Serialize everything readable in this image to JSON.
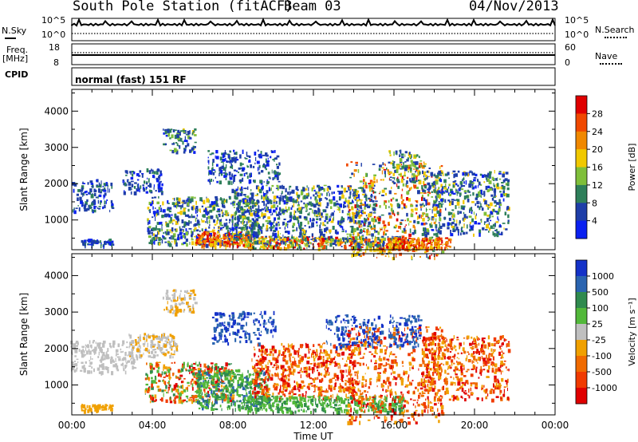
{
  "header": {
    "station": "South Pole Station (fitACF)",
    "beam": "Beam 03",
    "date": "04/Nov/2013",
    "mode_text": "normal (fast) 151 RF"
  },
  "strip_labels": {
    "nsky": "N.Sky",
    "nsearch": "N.Search",
    "freq_line1": "Freq.",
    "freq_line2": "[MHz]",
    "nave": "Nave",
    "cpid": "CPID",
    "nsky_ticks": [
      "10^5",
      "10^0"
    ],
    "nsearch_ticks": [
      "10^5",
      "10^0"
    ],
    "freq_ticks": [
      "18",
      "8"
    ],
    "nave_ticks": [
      "60",
      "0"
    ]
  },
  "chart_data": [
    {
      "type": "heatmap",
      "title": "Power",
      "xlabel": "Time UT",
      "ylabel": "Slant Range [km]",
      "x_ticks": [
        "00:00",
        "04:00",
        "08:00",
        "12:00",
        "16:00",
        "20:00",
        "00:00"
      ],
      "y_ticks": [
        1000,
        2000,
        3000,
        4000
      ],
      "colorbar_label": "Power [dB]",
      "colorbar_ticks": [
        "4",
        "8",
        "12",
        "16",
        "20",
        "24",
        "28"
      ],
      "colors": [
        "#0a20f0",
        "#1e3ea8",
        "#2e7f5a",
        "#7fbf3a",
        "#f0c800",
        "#f08800",
        "#f04800",
        "#e00000"
      ],
      "ylim": [
        180,
        4600
      ],
      "xlim_hours": [
        0,
        24
      ]
    },
    {
      "type": "heatmap",
      "title": "Velocity",
      "xlabel": "Time UT",
      "ylabel": "Slant Range [km]",
      "x_ticks": [
        "00:00",
        "04:00",
        "08:00",
        "12:00",
        "16:00",
        "20:00",
        "00:00"
      ],
      "y_ticks": [
        1000,
        2000,
        3000,
        4000
      ],
      "colorbar_label": "Velocity [m s⁻¹]",
      "colorbar_ticks": [
        "1000",
        "500",
        "100",
        "25",
        "-25",
        "-100",
        "-500",
        "-1000"
      ],
      "colors": [
        "#1432c8",
        "#2a64b0",
        "#2f8a4e",
        "#52b83a",
        "#bfbfbf",
        "#f0a000",
        "#f06a00",
        "#f03a00",
        "#e00000"
      ],
      "ylim": [
        180,
        4600
      ],
      "xlim_hours": [
        0,
        24
      ]
    }
  ]
}
